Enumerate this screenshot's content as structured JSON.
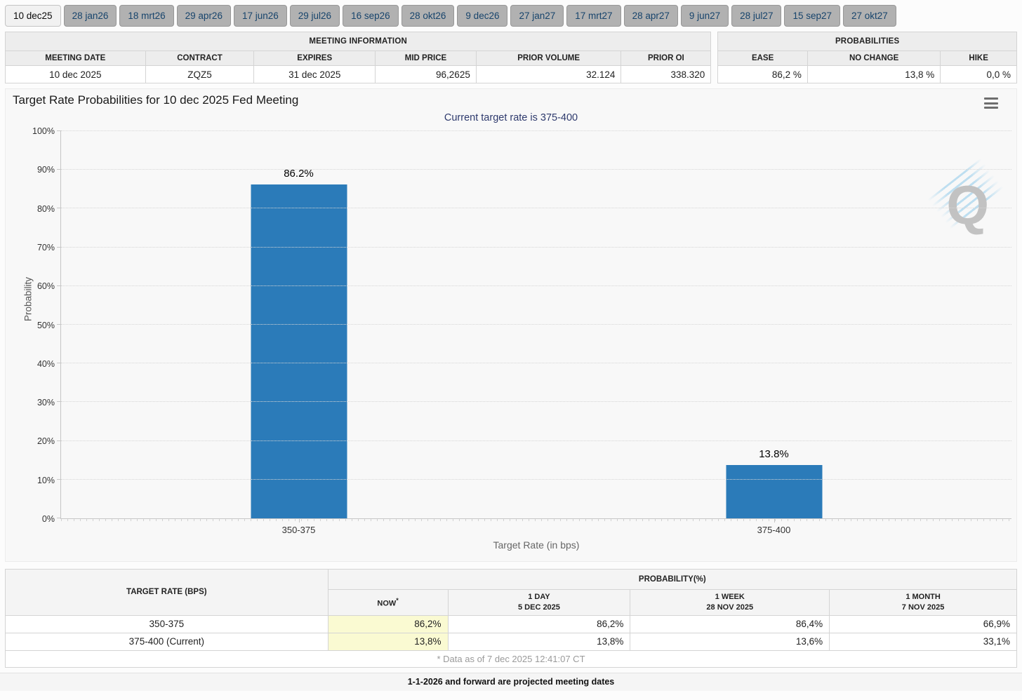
{
  "tabs": {
    "items": [
      {
        "label": "10 dec25",
        "selected": true
      },
      {
        "label": "28 jan26",
        "selected": false
      },
      {
        "label": "18 mrt26",
        "selected": false
      },
      {
        "label": "29 apr26",
        "selected": false
      },
      {
        "label": "17 jun26",
        "selected": false
      },
      {
        "label": "29 jul26",
        "selected": false
      },
      {
        "label": "16 sep26",
        "selected": false
      },
      {
        "label": "28 okt26",
        "selected": false
      },
      {
        "label": "9 dec26",
        "selected": false
      },
      {
        "label": "27 jan27",
        "selected": false
      },
      {
        "label": "17 mrt27",
        "selected": false
      },
      {
        "label": "28 apr27",
        "selected": false
      },
      {
        "label": "9 jun27",
        "selected": false
      },
      {
        "label": "28 jul27",
        "selected": false
      },
      {
        "label": "15 sep27",
        "selected": false
      },
      {
        "label": "27 okt27",
        "selected": false
      }
    ]
  },
  "meeting_info": {
    "title": "MEETING INFORMATION",
    "headers": [
      "MEETING DATE",
      "CONTRACT",
      "EXPIRES",
      "MID PRICE",
      "PRIOR VOLUME",
      "PRIOR OI"
    ],
    "values": [
      "10 dec 2025",
      "ZQZ5",
      "31 dec 2025",
      "96,2625",
      "32.124",
      "338.320"
    ]
  },
  "probabilities": {
    "title": "PROBABILITIES",
    "headers": [
      "EASE",
      "NO CHANGE",
      "HIKE"
    ],
    "values": [
      "86,2 %",
      "13,8 %",
      "0,0 %"
    ]
  },
  "chart": {
    "title": "Target Rate Probabilities for 10 dec 2025 Fed Meeting",
    "subtitle": "Current target rate is 375-400",
    "menu_icon": "hamburger-menu-icon",
    "watermark_letter": "Q"
  },
  "chart_data": {
    "type": "bar",
    "title": "Target Rate Probabilities for 10 dec 2025 Fed Meeting",
    "subtitle": "Current target rate is 375-400",
    "categories": [
      "350-375",
      "375-400"
    ],
    "values": [
      86.2,
      13.8
    ],
    "labels": [
      "86.2%",
      "13.8%"
    ],
    "xlabel": "Target Rate (in bps)",
    "ylabel": "Probability",
    "ylim": [
      0,
      100
    ],
    "ytick_values": [
      0,
      10,
      20,
      30,
      40,
      50,
      60,
      70,
      80,
      90,
      100
    ],
    "grid": "dotted horizontal",
    "legend": "none",
    "bar_color": "#2b7bb9"
  },
  "history_table": {
    "corner_header": "TARGET RATE (BPS)",
    "group_header": "PROBABILITY(%)",
    "columns": [
      {
        "line1": "NOW",
        "sup": "*",
        "line2": ""
      },
      {
        "line1": "1 DAY",
        "line2": "5 DEC 2025"
      },
      {
        "line1": "1 WEEK",
        "line2": "28 NOV 2025"
      },
      {
        "line1": "1 MONTH",
        "line2": "7 NOV 2025"
      }
    ],
    "rows": [
      {
        "label": "350-375",
        "now": "86,2%",
        "day": "86,2%",
        "week": "86,4%",
        "month": "66,9%"
      },
      {
        "label": "375-400 (Current)",
        "now": "13,8%",
        "day": "13,8%",
        "week": "13,6%",
        "month": "33,1%"
      }
    ],
    "footnote": "* Data as of 7 dec 2025 12:41:07 CT"
  },
  "footer": {
    "note": "1-1-2026 and forward are projected meeting dates"
  }
}
